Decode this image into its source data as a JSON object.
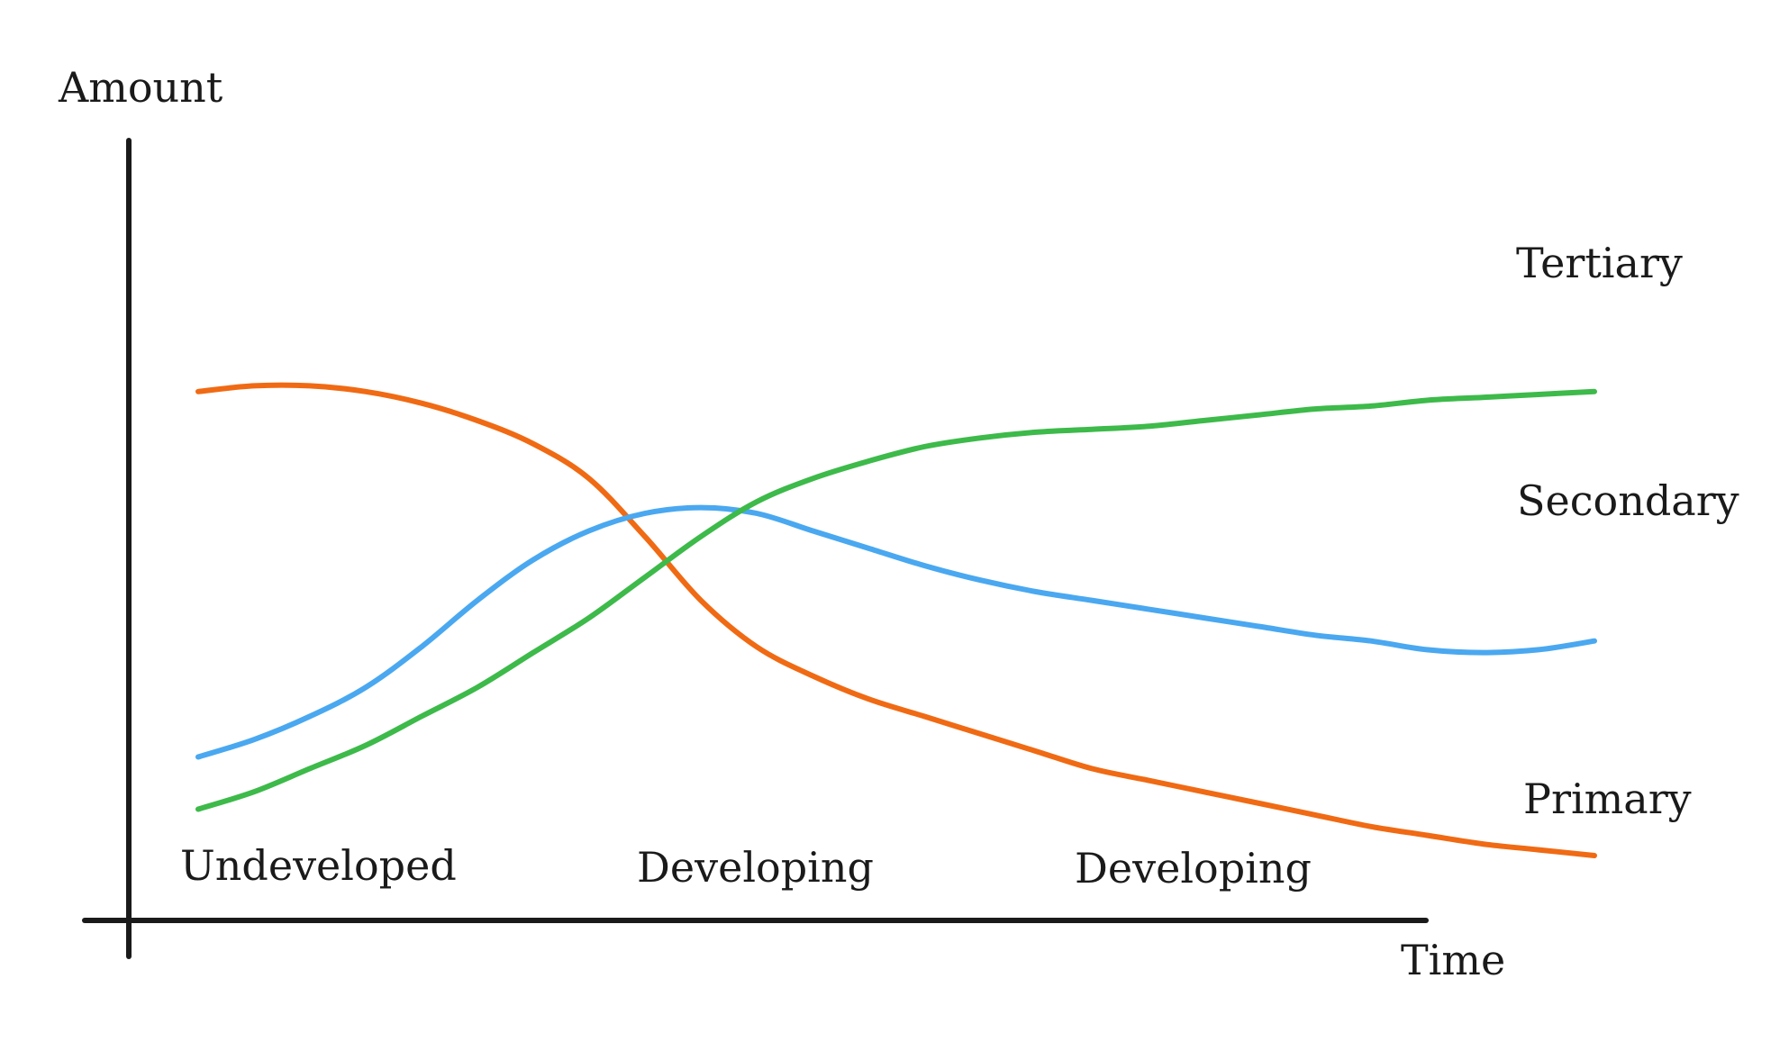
{
  "chart_data": {
    "type": "line",
    "xlabel": "Time",
    "ylabel": "Amount",
    "xlim": [
      0,
      100
    ],
    "ylim": [
      0,
      100
    ],
    "stages": [
      "Undeveloped",
      "Developing",
      "Developing"
    ],
    "series": [
      {
        "name": "Primary",
        "color": "#f06a14",
        "x": [
          0,
          4,
          8,
          12,
          16,
          20,
          24,
          28,
          32,
          36,
          40,
          44,
          48,
          52,
          56,
          60,
          64,
          68,
          72,
          76,
          80,
          84,
          88,
          92,
          96,
          100
        ],
        "y": [
          80,
          81,
          81,
          80,
          78,
          75,
          71,
          65,
          55,
          44,
          36,
          31,
          27,
          24,
          21,
          18,
          15,
          13,
          11,
          9,
          7,
          5,
          3.5,
          2,
          1,
          0
        ]
      },
      {
        "name": "Secondary",
        "color": "#4aa8f0",
        "x": [
          0,
          4,
          8,
          12,
          16,
          20,
          24,
          28,
          32,
          36,
          40,
          44,
          48,
          52,
          56,
          60,
          64,
          68,
          72,
          76,
          80,
          84,
          88,
          92,
          96,
          100
        ],
        "y": [
          17,
          20,
          24,
          29,
          36,
          44,
          51,
          56,
          59,
          60,
          59,
          56,
          53,
          50,
          47.5,
          45.5,
          44,
          42.5,
          41,
          39.5,
          38,
          37,
          35.5,
          35,
          35.5,
          37
        ]
      },
      {
        "name": "Tertiary",
        "color": "#3dba4a",
        "x": [
          0,
          4,
          8,
          12,
          16,
          20,
          24,
          28,
          32,
          36,
          40,
          44,
          48,
          52,
          56,
          60,
          64,
          68,
          72,
          76,
          80,
          84,
          88,
          92,
          96,
          100
        ],
        "y": [
          8,
          11,
          15,
          19,
          24,
          29,
          35,
          41,
          48,
          55,
          61,
          65,
          68,
          70.5,
          72,
          73,
          73.5,
          74,
          75,
          76,
          77,
          77.5,
          78.5,
          79,
          79.5,
          80
        ]
      }
    ]
  }
}
